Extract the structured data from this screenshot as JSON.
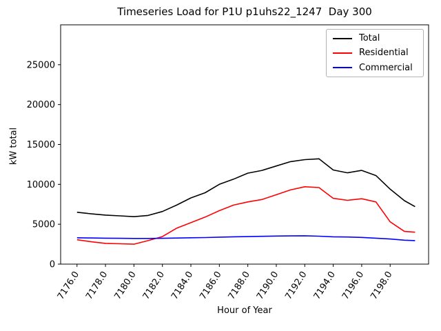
{
  "chart_data": {
    "type": "line",
    "title": "Timeseries Load for P1U p1uhs22_1247  Day 300",
    "xlabel": "Hour of Year",
    "ylabel": "kW total",
    "grid": false,
    "legend_position": "upper right",
    "xlim": [
      7174.85,
      7200.7
    ],
    "ylim": [
      0,
      30000
    ],
    "x_ticks": [
      7176,
      7178,
      7180,
      7182,
      7184,
      7186,
      7188,
      7190,
      7192,
      7194,
      7196,
      7198
    ],
    "x_tick_labels": [
      "7176.0",
      "7178.0",
      "7180.0",
      "7182.0",
      "7184.0",
      "7186.0",
      "7188.0",
      "7190.0",
      "7192.0",
      "7194.0",
      "7196.0",
      "7198.0"
    ],
    "y_ticks": [
      0,
      5000,
      10000,
      15000,
      20000,
      25000
    ],
    "y_tick_labels": [
      "0",
      "5000",
      "10000",
      "15000",
      "20000",
      "25000"
    ],
    "x": [
      7176,
      7177,
      7178,
      7179,
      7180,
      7181,
      7182,
      7183,
      7184,
      7185,
      7186,
      7187,
      7188,
      7189,
      7190,
      7191,
      7192,
      7193,
      7194,
      7195,
      7196,
      7197,
      7198,
      7199,
      7199.75
    ],
    "series": [
      {
        "name": "Total",
        "color": "#000000",
        "values": [
          6500,
          6300,
          6150,
          6050,
          5950,
          6100,
          6600,
          7400,
          8300,
          8950,
          10000,
          10650,
          11400,
          11750,
          12300,
          12850,
          13100,
          13200,
          11800,
          11450,
          11750,
          11100,
          9400,
          7950,
          7200
        ]
      },
      {
        "name": "Residential",
        "color": "#ff0000",
        "values": [
          3050,
          2800,
          2600,
          2550,
          2500,
          2950,
          3450,
          4500,
          5200,
          5900,
          6700,
          7400,
          7800,
          8100,
          8700,
          9300,
          9700,
          9600,
          8250,
          8000,
          8200,
          7800,
          5300,
          4100,
          4000
        ]
      },
      {
        "name": "Commercial",
        "color": "#0000ff",
        "values": [
          3300,
          3280,
          3250,
          3230,
          3220,
          3220,
          3230,
          3270,
          3300,
          3330,
          3380,
          3420,
          3450,
          3480,
          3520,
          3540,
          3550,
          3500,
          3420,
          3400,
          3350,
          3250,
          3150,
          3000,
          2950
        ]
      }
    ]
  }
}
